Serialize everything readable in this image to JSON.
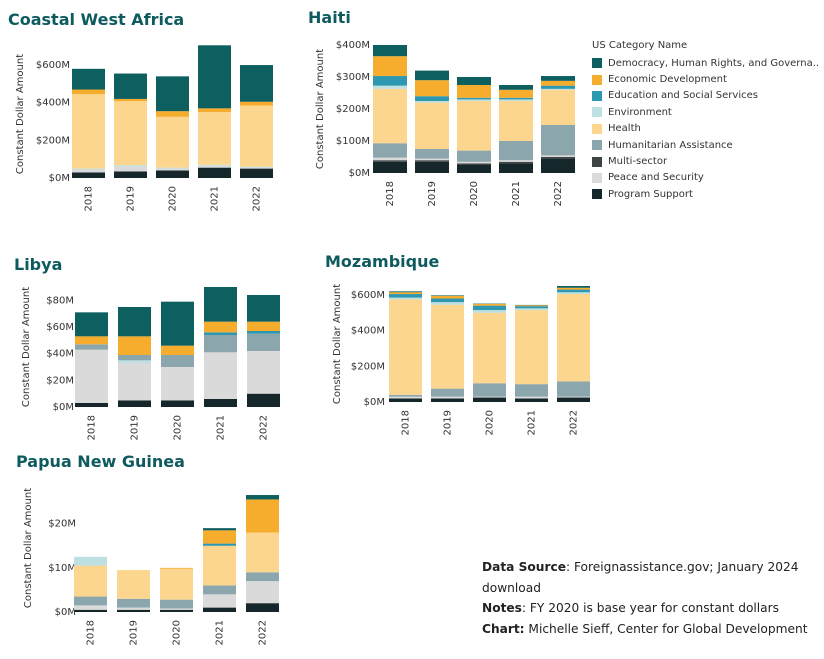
{
  "categories": [
    "Democracy, Human Rights, and Governa..",
    "Economic Development",
    "Education and Social Services",
    "Environment",
    "Health",
    "Humanitarian Assistance",
    "Multi-sector",
    "Peace and Security",
    "Program Support"
  ],
  "colors": [
    "#0e5f5f",
    "#f6ad2e",
    "#2e98b0",
    "#bfe0e0",
    "#fcd68e",
    "#8ca6ad",
    "#3e4446",
    "#dadada",
    "#16272b"
  ],
  "legend": {
    "title": "US Category Name"
  },
  "notes": {
    "source_key": "Data Source",
    "source_text": ": Foreignassistance.gov; January 2024 download",
    "notes_key": "Notes",
    "notes_text": ": FY 2020 is base year for constant dollars",
    "chart_key": "Chart:",
    "chart_text": " Michelle Sieff, Center for Global Development"
  },
  "chart_data": [
    {
      "type": "bar",
      "stacked": true,
      "title": "Coastal West Africa",
      "ylabel": "Constant Dollar Amount",
      "ylim": [
        0,
        680
      ],
      "yticks": [
        "$0M",
        "$200M",
        "$400M",
        "$600M"
      ],
      "ytick_values": [
        0,
        200,
        400,
        600
      ],
      "categories": [
        "2018",
        "2019",
        "2020",
        "2021",
        "2022"
      ],
      "series": [
        {
          "values": [
            30,
            35,
            40,
            55,
            50
          ]
        },
        {
          "values": [
            0,
            0,
            0,
            0,
            0
          ]
        },
        {
          "values": [
            15,
            25,
            10,
            10,
            5
          ]
        },
        {
          "values": [
            5,
            8,
            5,
            5,
            5
          ]
        },
        {
          "values": [
            395,
            340,
            270,
            280,
            325
          ]
        },
        {
          "values": [
            0,
            0,
            0,
            0,
            0
          ]
        },
        {
          "values": [
            0,
            0,
            0,
            0,
            0
          ]
        },
        {
          "values": [
            25,
            12,
            30,
            20,
            20
          ]
        },
        {
          "values": [
            110,
            135,
            185,
            335,
            195
          ]
        },
        {
          "values": [
            0,
            0,
            0,
            0,
            0
          ]
        },
        {
          "values": [
            0,
            0,
            0,
            0,
            0
          ]
        }
      ]
    },
    {
      "type": "bar",
      "stacked": true,
      "title": "Haiti",
      "ylabel": "Constant Dollar Amount",
      "ylim": [
        0,
        400
      ],
      "yticks": [
        "$0M",
        "$100M",
        "$200M",
        "$300M",
        "$400M"
      ],
      "ytick_values": [
        0,
        100,
        200,
        300,
        400
      ],
      "categories": [
        "2018",
        "2019",
        "2020",
        "2021",
        "2022"
      ],
      "series": [
        {
          "values": [
            35,
            35,
            25,
            30,
            45
          ]
        },
        {
          "values": [
            5,
            5,
            5,
            5,
            5
          ]
        },
        {
          "values": [
            8,
            5,
            5,
            5,
            5
          ]
        },
        {
          "values": [
            45,
            30,
            35,
            60,
            95
          ]
        },
        {
          "values": [
            170,
            145,
            155,
            125,
            110
          ]
        },
        {
          "values": [
            10,
            5,
            5,
            5,
            3
          ]
        },
        {
          "values": [
            30,
            15,
            5,
            5,
            10
          ]
        },
        {
          "values": [
            62,
            50,
            40,
            25,
            15
          ]
        },
        {
          "values": [
            35,
            30,
            25,
            15,
            15
          ]
        }
      ]
    },
    {
      "type": "bar",
      "stacked": true,
      "title": "Libya",
      "ylabel": "Constant Dollar Amount",
      "ylim": [
        0,
        90
      ],
      "yticks": [
        "$0M",
        "$20M",
        "$40M",
        "$60M",
        "$80M"
      ],
      "ytick_values": [
        0,
        20,
        40,
        60,
        80
      ],
      "categories": [
        "2018",
        "2019",
        "2020",
        "2021",
        "2022"
      ],
      "series": [
        {
          "values": [
            3,
            5,
            5,
            6,
            10
          ]
        },
        {
          "values": [
            0,
            0,
            0,
            0,
            0
          ]
        },
        {
          "values": [
            40,
            28,
            25,
            35,
            32
          ]
        },
        {
          "values": [
            0,
            2,
            0,
            0,
            0
          ]
        },
        {
          "values": [
            4,
            4,
            9,
            13,
            13
          ]
        },
        {
          "values": [
            0,
            0,
            0,
            0,
            0
          ]
        },
        {
          "values": [
            0,
            0,
            0,
            2,
            2
          ]
        },
        {
          "values": [
            0,
            0,
            0,
            0,
            0
          ]
        },
        {
          "values": [
            6,
            14,
            7,
            8,
            7
          ]
        },
        {
          "values": [
            0,
            0,
            0,
            0,
            0
          ]
        },
        {
          "values": [
            18,
            22,
            33,
            26,
            20
          ]
        }
      ]
    },
    {
      "type": "bar",
      "stacked": true,
      "title": "Mozambique",
      "ylabel": "Constant Dollar Amount",
      "ylim": [
        0,
        650
      ],
      "yticks": [
        "$0M",
        "$200M",
        "$400M",
        "$600M"
      ],
      "ytick_values": [
        0,
        200,
        400,
        600
      ],
      "categories": [
        "2018",
        "2019",
        "2020",
        "2021",
        "2022"
      ],
      "series": [
        {
          "values": [
            20,
            20,
            25,
            20,
            25
          ]
        },
        {
          "values": [
            10,
            10,
            5,
            10,
            5
          ]
        },
        {
          "values": [
            10,
            45,
            75,
            70,
            85
          ]
        },
        {
          "values": [
            535,
            470,
            395,
            415,
            490
          ]
        },
        {
          "values": [
            10,
            15,
            15,
            10,
            10
          ]
        },
        {
          "values": [
            20,
            20,
            25,
            12,
            15
          ]
        },
        {
          "values": [
            10,
            15,
            10,
            5,
            10
          ]
        },
        {
          "values": [
            5,
            3,
            2,
            2,
            10
          ]
        }
      ]
    },
    {
      "type": "bar",
      "stacked": true,
      "title": "Papua New Guinea",
      "ylabel": "Constant Dollar Amount",
      "ylim": [
        0,
        29
      ],
      "yticks": [
        "$0M",
        "$10M",
        "$20M"
      ],
      "ytick_values": [
        0,
        10,
        20
      ],
      "categories": [
        "2018",
        "2019",
        "2020",
        "2021",
        "2022"
      ],
      "series": [
        {
          "values": [
            0.5,
            0.5,
            0.5,
            1,
            2
          ]
        },
        {
          "values": [
            0,
            0,
            0,
            0,
            0
          ]
        },
        {
          "values": [
            1,
            0.5,
            0.3,
            3,
            5
          ]
        },
        {
          "values": [
            2,
            2,
            2,
            2,
            2
          ]
        },
        {
          "values": [
            7,
            6.5,
            7,
            9,
            9
          ]
        },
        {
          "values": [
            2,
            0,
            0,
            0,
            0
          ]
        },
        {
          "values": [
            0,
            0,
            0,
            0.5,
            0
          ]
        },
        {
          "values": [
            0,
            0,
            0.2,
            3,
            7.5
          ]
        },
        {
          "values": [
            0,
            0,
            0,
            0.5,
            1
          ]
        }
      ]
    }
  ]
}
